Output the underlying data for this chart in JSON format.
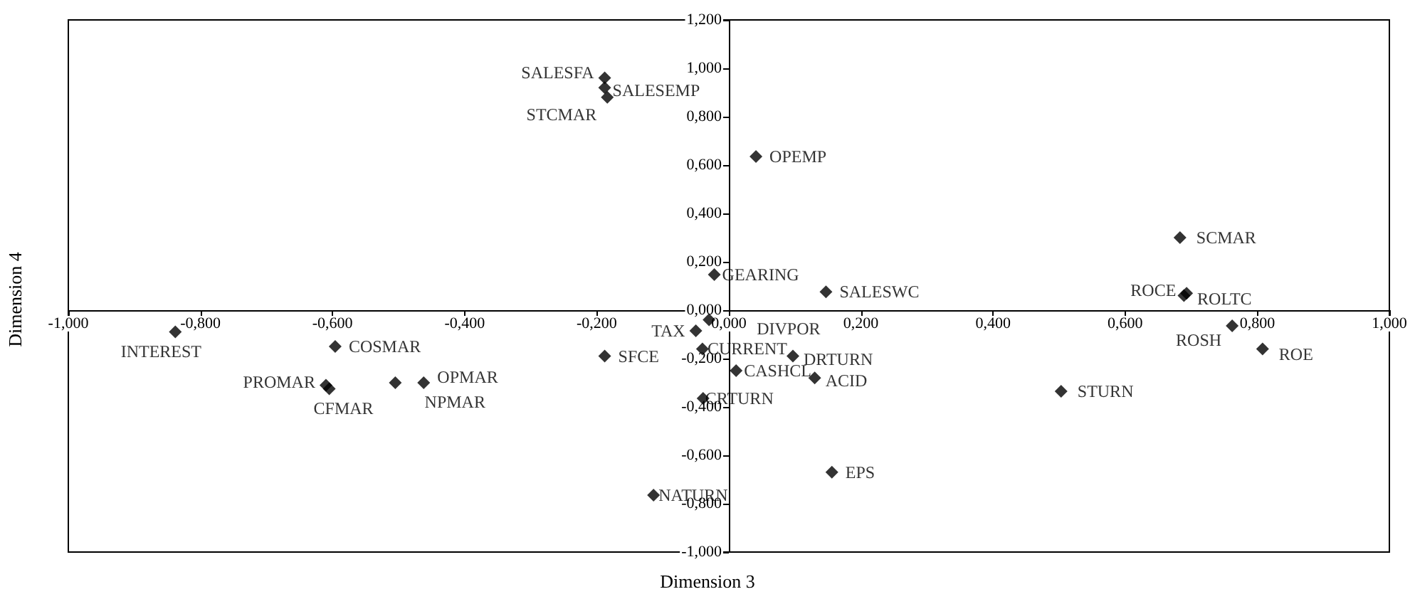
{
  "chart_data": {
    "type": "scatter",
    "xlabel": "Dimension 3",
    "ylabel": "Dimension 4",
    "x": [
      -0.188,
      -0.188,
      -0.184,
      0.041,
      -0.022,
      0.147,
      -0.03,
      -0.05,
      -0.04,
      0.097,
      0.011,
      0.13,
      -0.039,
      -0.188,
      -0.114,
      0.156,
      -0.838,
      -0.596,
      -0.61,
      -0.605,
      -0.505,
      -0.462,
      0.683,
      0.689,
      0.693,
      0.762,
      0.808,
      0.503
    ],
    "series": [
      {
        "color": "#000000",
        "values": [
          0.96,
          0.92,
          0.88,
          0.635,
          0.147,
          0.076,
          -0.04,
          -0.085,
          -0.16,
          -0.19,
          -0.25,
          -0.28,
          -0.365,
          -0.19,
          -0.765,
          -0.67,
          -0.09,
          -0.15,
          -0.31,
          -0.325,
          -0.3,
          -0.3,
          0.3,
          0.06,
          0.07,
          -0.065,
          -0.16,
          -0.335
        ]
      }
    ],
    "annotations": [
      {
        "text": "SALESFA",
        "x": -0.188,
        "y": 0.96
      },
      {
        "text": "SALESEMP",
        "x": -0.188,
        "y": 0.92
      },
      {
        "text": "STCMAR",
        "x": -0.184,
        "y": 0.88
      },
      {
        "text": "OPEMP",
        "x": 0.041,
        "y": 0.635
      },
      {
        "text": "GEARING",
        "x": -0.022,
        "y": 0.147
      },
      {
        "text": "SALESWC",
        "x": 0.147,
        "y": 0.076
      },
      {
        "text": "DIVPOR",
        "x": -0.03,
        "y": -0.04
      },
      {
        "text": "TAX",
        "x": -0.05,
        "y": -0.085
      },
      {
        "text": "CURRENT",
        "x": -0.04,
        "y": -0.16
      },
      {
        "text": "DRTURN",
        "x": 0.097,
        "y": -0.19
      },
      {
        "text": "CASHCL",
        "x": 0.011,
        "y": -0.25
      },
      {
        "text": "ACID",
        "x": 0.13,
        "y": -0.28
      },
      {
        "text": "CRTURN",
        "x": -0.039,
        "y": -0.365
      },
      {
        "text": "SFCE",
        "x": -0.188,
        "y": -0.19
      },
      {
        "text": "NATURN",
        "x": -0.114,
        "y": -0.765
      },
      {
        "text": "EPS",
        "x": 0.156,
        "y": -0.67
      },
      {
        "text": "INTEREST",
        "x": -0.838,
        "y": -0.09
      },
      {
        "text": "COSMAR",
        "x": -0.596,
        "y": -0.15
      },
      {
        "text": "PROMAR",
        "x": -0.61,
        "y": -0.31
      },
      {
        "text": "CFMAR",
        "x": -0.605,
        "y": -0.325
      },
      {
        "text": "OPMAR",
        "x": -0.505,
        "y": -0.3
      },
      {
        "text": "NPMAR",
        "x": -0.462,
        "y": -0.3
      },
      {
        "text": "SCMAR",
        "x": 0.683,
        "y": 0.3
      },
      {
        "text": "ROCE",
        "x": 0.689,
        "y": 0.06
      },
      {
        "text": "ROLTC",
        "x": 0.693,
        "y": 0.07
      },
      {
        "text": "ROSH",
        "x": 0.762,
        "y": -0.065
      },
      {
        "text": "ROE",
        "x": 0.808,
        "y": -0.16
      },
      {
        "text": "STURN",
        "x": 0.503,
        "y": -0.335
      }
    ],
    "xlim": [
      -1,
      1
    ],
    "xticks": [
      {
        "value": -1,
        "label": "-1,000"
      },
      {
        "value": -0.8,
        "label": "-0,800"
      },
      {
        "value": -0.6,
        "label": "-0,600"
      },
      {
        "value": -0.4,
        "label": "-0,400"
      },
      {
        "value": -0.2,
        "label": "-0,200"
      },
      {
        "value": 0,
        "label": "0,000"
      },
      {
        "value": 0.2,
        "label": "0,200"
      },
      {
        "value": 0.4,
        "label": "0,400"
      },
      {
        "value": 0.6,
        "label": "0,600"
      },
      {
        "value": 0.8,
        "label": "0,800"
      },
      {
        "value": 1,
        "label": "1,000"
      }
    ],
    "ylim": [
      -1,
      1.2
    ],
    "yticks": [
      {
        "value": -1,
        "label": "-1,000"
      },
      {
        "value": -0.8,
        "label": "-0,800"
      },
      {
        "value": -0.6,
        "label": "-0,600"
      },
      {
        "value": -0.4,
        "label": "-0,400"
      },
      {
        "value": -0.2,
        "label": "-0,200"
      },
      {
        "value": 0,
        "label": "0,000"
      },
      {
        "value": 0.2,
        "label": "0,200"
      },
      {
        "value": 0.4,
        "label": "0,400"
      },
      {
        "value": 0.6,
        "label": "0,600"
      },
      {
        "value": 0.8,
        "label": "0,800"
      },
      {
        "value": 1,
        "label": "1,000"
      },
      {
        "value": 1.2,
        "label": "1,200"
      }
    ],
    "grid": false,
    "marker": "diamond"
  }
}
